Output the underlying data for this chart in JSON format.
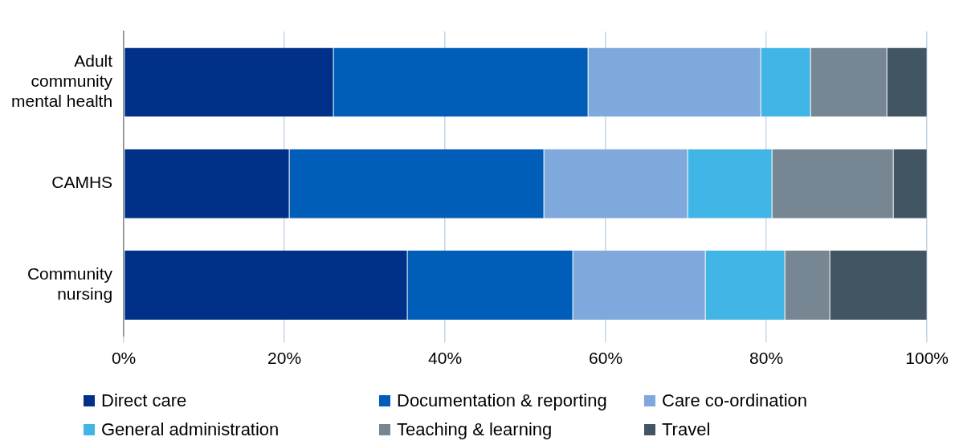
{
  "chart_data": {
    "type": "bar",
    "orientation": "horizontal",
    "stacked": true,
    "categories": [
      "Adult community mental health",
      "CAMHS",
      "Community nursing"
    ],
    "series": [
      {
        "name": "Direct care",
        "color": "#003087",
        "values": [
          26.1,
          20.6,
          35.3
        ]
      },
      {
        "name": "Documentation & reporting",
        "color": "#005eb8",
        "values": [
          31.7,
          31.7,
          20.6
        ]
      },
      {
        "name": "Care co-ordination",
        "color": "#7fa8dc",
        "values": [
          21.5,
          17.9,
          16.5
        ]
      },
      {
        "name": "General administration",
        "color": "#41b6e6",
        "values": [
          6.2,
          10.5,
          9.9
        ]
      },
      {
        "name": "Teaching & learning",
        "color": "#768692",
        "values": [
          9.5,
          15.1,
          5.6
        ]
      },
      {
        "name": "Travel",
        "color": "#425563",
        "values": [
          5.0,
          4.2,
          12.1
        ]
      }
    ],
    "xlim": [
      0,
      100
    ],
    "xticks": [
      {
        "value": 0,
        "label": "0%"
      },
      {
        "value": 20,
        "label": "20%"
      },
      {
        "value": 40,
        "label": "40%"
      },
      {
        "value": 60,
        "label": "60%"
      },
      {
        "value": 80,
        "label": "80%"
      },
      {
        "value": 100,
        "label": "100%"
      }
    ],
    "grid": "x",
    "legend": "bottom"
  }
}
